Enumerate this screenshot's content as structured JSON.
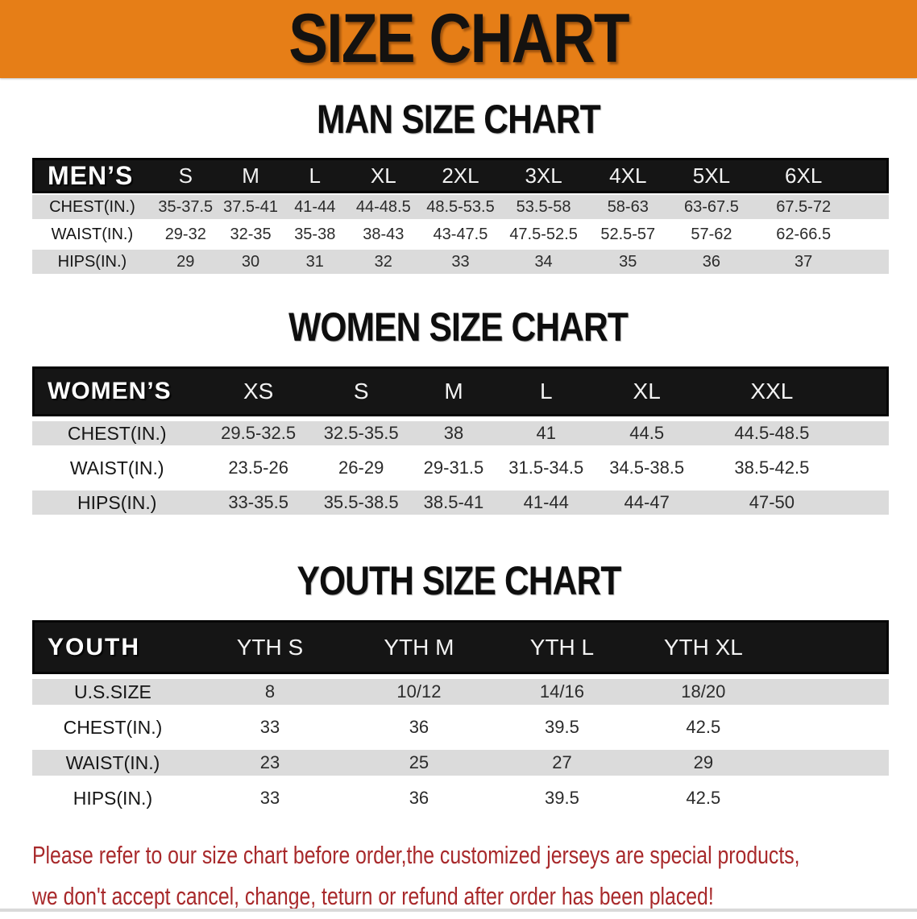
{
  "banner": {
    "title": "SIZE CHART"
  },
  "colors": {
    "banner_bg": "#E67E17",
    "table_header_bg": "#151515",
    "row_stripe": "#DBDBDB",
    "note_red": "#A8292B"
  },
  "sections": {
    "men": {
      "title": "MAN SIZE CHART",
      "table": {
        "label": "MEN’S",
        "columns": [
          "S",
          "M",
          "L",
          "XL",
          "2XL",
          "3XL",
          "4XL",
          "5XL",
          "6XL"
        ],
        "rows": [
          {
            "label": "CHEST(IN.)",
            "values": [
              "35-37.5",
              "37.5-41",
              "41-44",
              "44-48.5",
              "48.5-53.5",
              "53.5-58",
              "58-63",
              "63-67.5",
              "67.5-72"
            ]
          },
          {
            "label": "WAIST(IN.)",
            "values": [
              "29-32",
              "32-35",
              "35-38",
              "38-43",
              "43-47.5",
              "47.5-52.5",
              "52.5-57",
              "57-62",
              "62-66.5"
            ]
          },
          {
            "label": "HIPS(IN.)",
            "values": [
              "29",
              "30",
              "31",
              "32",
              "33",
              "34",
              "35",
              "36",
              "37"
            ]
          }
        ]
      }
    },
    "women": {
      "title": "WOMEN SIZE CHART",
      "table": {
        "label": "WOMEN’S",
        "columns": [
          "XS",
          "S",
          "M",
          "L",
          "XL",
          "XXL"
        ],
        "rows": [
          {
            "label": "CHEST(IN.)",
            "values": [
              "29.5-32.5",
              "32.5-35.5",
              "38",
              "41",
              "44.5",
              "44.5-48.5"
            ]
          },
          {
            "label": "WAIST(IN.)",
            "values": [
              "23.5-26",
              "26-29",
              "29-31.5",
              "31.5-34.5",
              "34.5-38.5",
              "38.5-42.5"
            ]
          },
          {
            "label": "HIPS(IN.)",
            "values": [
              "33-35.5",
              "35.5-38.5",
              "38.5-41",
              "41-44",
              "44-47",
              "47-50"
            ]
          }
        ]
      }
    },
    "youth": {
      "title": "YOUTH SIZE CHART",
      "table": {
        "label": "YOUTH",
        "columns": [
          "YTH S",
          "YTH M",
          "YTH L",
          "YTH XL"
        ],
        "rows": [
          {
            "label": "U.S.SIZE",
            "values": [
              "8",
              "10/12",
              "14/16",
              "18/20"
            ]
          },
          {
            "label": "CHEST(IN.)",
            "values": [
              "33",
              "36",
              "39.5",
              "42.5"
            ]
          },
          {
            "label": "WAIST(IN.)",
            "values": [
              "23",
              "25",
              "27",
              "29"
            ]
          },
          {
            "label": "HIPS(IN.)",
            "values": [
              "33",
              "36",
              "39.5",
              "42.5"
            ]
          }
        ]
      }
    }
  },
  "note": {
    "line1": "Please refer to our size chart before order,the customized jerseys are special products,",
    "line2": "we don't accept cancel, change, teturn or refund after order has been placed!"
  }
}
